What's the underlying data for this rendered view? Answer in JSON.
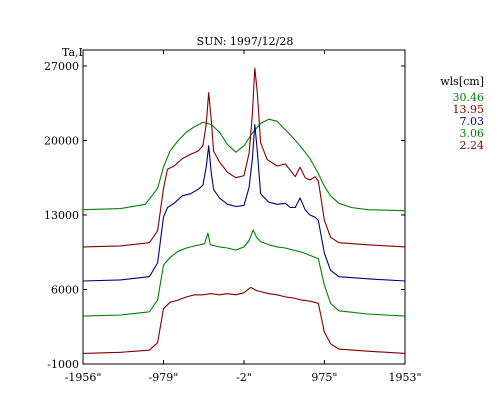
{
  "chart_data": {
    "type": "line",
    "title": "SUN: 1997/12/28",
    "ylabel": "Ta,I",
    "xlabel": "",
    "x_ticks": [
      {
        "value": -1956,
        "label": "-1956\""
      },
      {
        "value": -979,
        "label": "-979\""
      },
      {
        "value": -2,
        "label": "-2\""
      },
      {
        "value": 975,
        "label": "975\""
      },
      {
        "value": 1953,
        "label": "1953\""
      }
    ],
    "y_ticks": [
      -1000,
      6000,
      13000,
      20000,
      27000
    ],
    "xlim": [
      -1956,
      1953
    ],
    "ylim": [
      -1000,
      28500
    ],
    "grid": false,
    "legend": {
      "title": "wls[cm]",
      "position": "right",
      "entries": [
        {
          "name": "30.46",
          "color": "#008000"
        },
        {
          "name": "13.95",
          "color": "#800000"
        },
        {
          "name": "7.03",
          "color": "#000080"
        },
        {
          "name": "3.06",
          "color": "#008000"
        },
        {
          "name": "2.24",
          "color": "#800000"
        }
      ]
    },
    "series": [
      {
        "name": "30.46",
        "color": "#008000",
        "points": [
          [
            -1956,
            13500
          ],
          [
            -1500,
            13600
          ],
          [
            -1200,
            14000
          ],
          [
            -1050,
            15500
          ],
          [
            -979,
            17500
          ],
          [
            -900,
            19000
          ],
          [
            -800,
            20000
          ],
          [
            -700,
            20800
          ],
          [
            -600,
            21300
          ],
          [
            -500,
            21700
          ],
          [
            -400,
            21500
          ],
          [
            -300,
            20800
          ],
          [
            -200,
            19600
          ],
          [
            -100,
            18900
          ],
          [
            -2,
            19500
          ],
          [
            100,
            20700
          ],
          [
            200,
            21600
          ],
          [
            300,
            22000
          ],
          [
            400,
            21800
          ],
          [
            500,
            21000
          ],
          [
            600,
            20200
          ],
          [
            700,
            19300
          ],
          [
            800,
            18300
          ],
          [
            900,
            16900
          ],
          [
            975,
            15700
          ],
          [
            1050,
            14800
          ],
          [
            1150,
            14100
          ],
          [
            1300,
            13700
          ],
          [
            1500,
            13500
          ],
          [
            1953,
            13400
          ]
        ]
      },
      {
        "name": "13.95",
        "color": "#800000",
        "points": [
          [
            -1956,
            10000
          ],
          [
            -1500,
            10100
          ],
          [
            -1150,
            10400
          ],
          [
            -1050,
            11500
          ],
          [
            -979,
            15500
          ],
          [
            -930,
            17300
          ],
          [
            -850,
            17600
          ],
          [
            -750,
            18300
          ],
          [
            -650,
            18700
          ],
          [
            -560,
            19000
          ],
          [
            -500,
            19500
          ],
          [
            -460,
            21500
          ],
          [
            -430,
            24500
          ],
          [
            -400,
            22000
          ],
          [
            -370,
            19000
          ],
          [
            -300,
            18000
          ],
          [
            -200,
            17000
          ],
          [
            -100,
            16500
          ],
          [
            -2,
            16700
          ],
          [
            60,
            18800
          ],
          [
            100,
            22500
          ],
          [
            130,
            26800
          ],
          [
            160,
            24500
          ],
          [
            200,
            19800
          ],
          [
            280,
            18200
          ],
          [
            400,
            17600
          ],
          [
            500,
            17800
          ],
          [
            560,
            17200
          ],
          [
            620,
            16600
          ],
          [
            680,
            17500
          ],
          [
            740,
            16500
          ],
          [
            800,
            16300
          ],
          [
            860,
            16600
          ],
          [
            900,
            16200
          ],
          [
            975,
            12500
          ],
          [
            1050,
            10900
          ],
          [
            1150,
            10400
          ],
          [
            1500,
            10200
          ],
          [
            1953,
            10000
          ]
        ]
      },
      {
        "name": "7.03",
        "color": "#000080",
        "points": [
          [
            -1956,
            6800
          ],
          [
            -1500,
            6900
          ],
          [
            -1150,
            7200
          ],
          [
            -1050,
            8500
          ],
          [
            -979,
            12800
          ],
          [
            -930,
            13700
          ],
          [
            -850,
            14100
          ],
          [
            -750,
            14800
          ],
          [
            -650,
            15000
          ],
          [
            -560,
            15400
          ],
          [
            -500,
            15800
          ],
          [
            -460,
            17500
          ],
          [
            -430,
            19500
          ],
          [
            -400,
            17000
          ],
          [
            -370,
            15400
          ],
          [
            -300,
            14600
          ],
          [
            -200,
            14000
          ],
          [
            -100,
            13800
          ],
          [
            -2,
            13900
          ],
          [
            60,
            15600
          ],
          [
            100,
            18300
          ],
          [
            130,
            21500
          ],
          [
            160,
            19000
          ],
          [
            200,
            15000
          ],
          [
            300,
            14200
          ],
          [
            400,
            14000
          ],
          [
            500,
            14100
          ],
          [
            560,
            13700
          ],
          [
            620,
            13700
          ],
          [
            680,
            14600
          ],
          [
            740,
            13500
          ],
          [
            800,
            13000
          ],
          [
            860,
            12800
          ],
          [
            900,
            12500
          ],
          [
            975,
            9400
          ],
          [
            1050,
            7800
          ],
          [
            1150,
            7200
          ],
          [
            1500,
            7000
          ],
          [
            1953,
            6800
          ]
        ]
      },
      {
        "name": "3.06",
        "color": "#008000",
        "points": [
          [
            -1956,
            3500
          ],
          [
            -1500,
            3600
          ],
          [
            -1150,
            3900
          ],
          [
            -1050,
            5000
          ],
          [
            -979,
            8300
          ],
          [
            -900,
            9000
          ],
          [
            -800,
            9600
          ],
          [
            -700,
            9900
          ],
          [
            -600,
            10100
          ],
          [
            -480,
            10300
          ],
          [
            -440,
            11300
          ],
          [
            -410,
            10200
          ],
          [
            -300,
            10000
          ],
          [
            -200,
            9900
          ],
          [
            -100,
            9700
          ],
          [
            -2,
            10000
          ],
          [
            60,
            10600
          ],
          [
            110,
            11600
          ],
          [
            150,
            10900
          ],
          [
            200,
            10500
          ],
          [
            300,
            10200
          ],
          [
            400,
            10000
          ],
          [
            500,
            9900
          ],
          [
            600,
            9700
          ],
          [
            700,
            9500
          ],
          [
            800,
            9200
          ],
          [
            900,
            8900
          ],
          [
            975,
            6400
          ],
          [
            1050,
            4700
          ],
          [
            1150,
            4000
          ],
          [
            1500,
            3700
          ],
          [
            1953,
            3500
          ]
        ]
      },
      {
        "name": "2.24",
        "color": "#800000",
        "points": [
          [
            -1956,
            0
          ],
          [
            -1500,
            100
          ],
          [
            -1150,
            300
          ],
          [
            -1050,
            1000
          ],
          [
            -979,
            4200
          ],
          [
            -900,
            4800
          ],
          [
            -800,
            5000
          ],
          [
            -700,
            5300
          ],
          [
            -600,
            5500
          ],
          [
            -500,
            5500
          ],
          [
            -400,
            5600
          ],
          [
            -300,
            5500
          ],
          [
            -200,
            5600
          ],
          [
            -100,
            5500
          ],
          [
            -2,
            5700
          ],
          [
            80,
            6200
          ],
          [
            150,
            5900
          ],
          [
            300,
            5600
          ],
          [
            400,
            5500
          ],
          [
            500,
            5300
          ],
          [
            600,
            5200
          ],
          [
            700,
            5000
          ],
          [
            800,
            4900
          ],
          [
            900,
            4700
          ],
          [
            975,
            2000
          ],
          [
            1050,
            900
          ],
          [
            1150,
            400
          ],
          [
            1500,
            200
          ],
          [
            1953,
            0
          ]
        ]
      }
    ]
  }
}
